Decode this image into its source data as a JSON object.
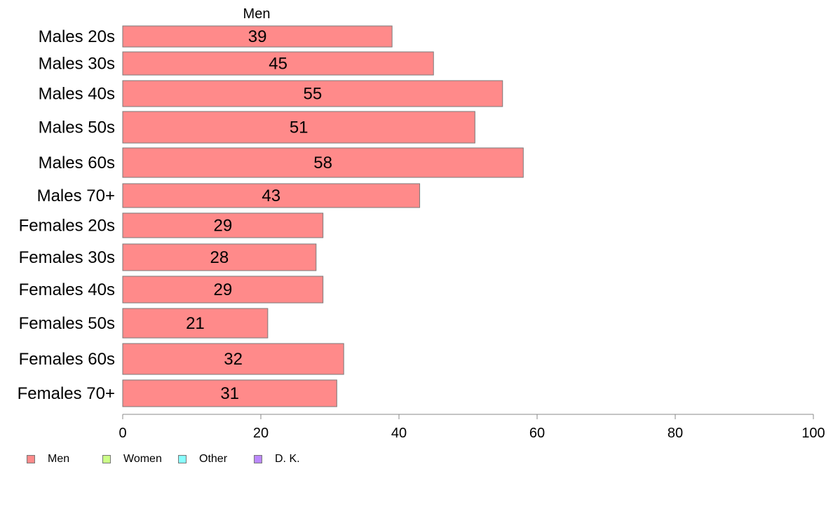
{
  "chart_data": {
    "type": "bar",
    "orientation": "horizontal",
    "series_label": "Men",
    "categories": [
      "Males 20s",
      "Males 30s",
      "Males 40s",
      "Males 50s",
      "Males 60s",
      "Males 70+",
      "Females 20s",
      "Females 30s",
      "Females 40s",
      "Females 50s",
      "Females 60s",
      "Females 70+"
    ],
    "series": [
      {
        "name": "Men",
        "values": [
          39,
          45,
          55,
          51,
          58,
          43,
          29,
          28,
          29,
          21,
          32,
          31
        ],
        "color": "#ff8a8a"
      }
    ],
    "value_labels": [
      "39",
      "45",
      "55",
      "51",
      "58",
      "43",
      "29",
      "28",
      "29",
      "21",
      "32",
      "31"
    ],
    "xlim": [
      0,
      100
    ],
    "x_ticks": [
      0,
      20,
      40,
      60,
      80,
      100
    ],
    "x_tick_labels": [
      "0",
      "20",
      "40",
      "60",
      "80",
      "100"
    ],
    "grid": false,
    "legend_position": "bottom-left"
  },
  "legend": {
    "items": [
      {
        "label": "Men",
        "color": "#ff8a8a"
      },
      {
        "label": "Women",
        "color": "#ccff88"
      },
      {
        "label": "Other",
        "color": "#88ffff"
      },
      {
        "label": "D. K.",
        "color": "#bb88ff"
      }
    ]
  }
}
